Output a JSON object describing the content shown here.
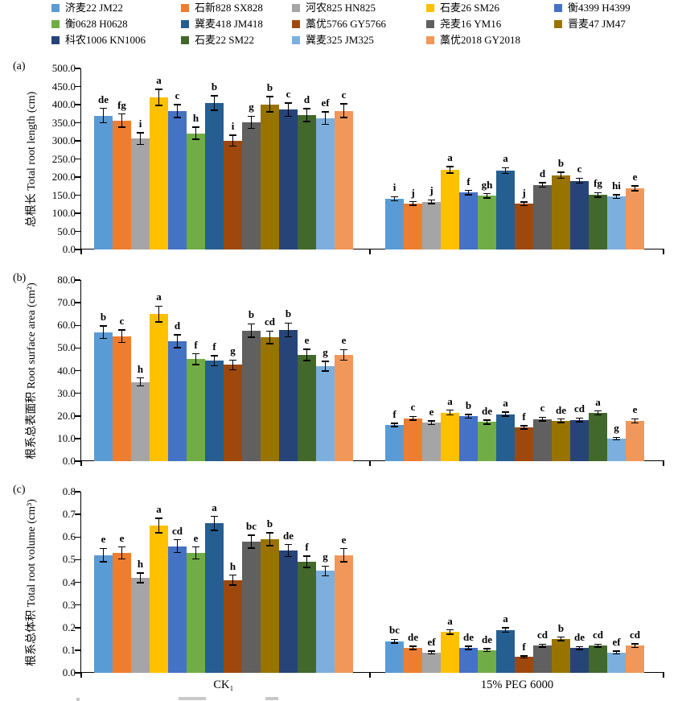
{
  "figure": {
    "x_axis_groups": [
      "CK₁",
      "15% PEG 6000"
    ]
  },
  "legend": {
    "items": [
      {
        "label": "济麦22 JM22",
        "color": "#5B9BD5"
      },
      {
        "label": "石新828 SX828",
        "color": "#ED7D31"
      },
      {
        "label": "河农825 HN825",
        "color": "#A5A5A5"
      },
      {
        "label": "石麦26 SM26",
        "color": "#FFC000"
      },
      {
        "label": "衡4399 H4399",
        "color": "#4472C4"
      },
      {
        "label": "衡0628 H0628",
        "color": "#70AD47"
      },
      {
        "label": "冀麦418 JM418",
        "color": "#255E91"
      },
      {
        "label": "藁优5766 GY5766",
        "color": "#9E480E"
      },
      {
        "label": "尧麦16 YM16",
        "color": "#606060"
      },
      {
        "label": "晋麦47 JM47",
        "color": "#997300"
      },
      {
        "label": "科农1006 KN1006",
        "color": "#264478"
      },
      {
        "label": "石麦22 SM22",
        "color": "#43682B"
      },
      {
        "label": "冀麦325 JM325",
        "color": "#7CAFDD"
      },
      {
        "label": "藁优2018 GY2018",
        "color": "#F1975A"
      }
    ]
  },
  "chart_data": [
    {
      "type": "bar",
      "panel": "(a)",
      "ylabel": "总根长 Total root length (cm)",
      "ylim": [
        0,
        500
      ],
      "yticks": [
        "0.0",
        "50.0",
        "100.0",
        "150.0",
        "200.0",
        "250.0",
        "300.0",
        "350.0",
        "400.0",
        "450.0",
        "500.0"
      ],
      "categories": [
        "济麦22 JM22",
        "石新828 SX828",
        "河农825 HN825",
        "石麦26 SM26",
        "衡4399 H4399",
        "衡0628 H0628",
        "冀麦418 JM418",
        "藁优5766 GY5766",
        "尧麦16 YM16",
        "晋麦47 JM47",
        "科农1006 KN1006",
        "石麦22 SM22",
        "冀麦325 JM325",
        "藁优2018 GY2018"
      ],
      "groups": [
        {
          "label": "CK₁",
          "values": [
            370,
            356,
            306,
            420,
            382,
            321,
            405,
            301,
            351,
            401,
            386,
            371,
            363,
            383
          ],
          "errors": [
            20,
            18,
            16,
            22,
            18,
            17,
            20,
            15,
            17,
            21,
            18,
            18,
            17,
            19
          ],
          "letters": [
            "de",
            "fg",
            "i",
            "a",
            "c",
            "h",
            "b",
            "i",
            "g",
            "b",
            "c",
            "d",
            "ef",
            "c"
          ]
        },
        {
          "label": "15% PEG 6000",
          "values": [
            140,
            127,
            132,
            220,
            157,
            148,
            218,
            126,
            178,
            205,
            190,
            151,
            146,
            169
          ],
          "errors": [
            6,
            5,
            5,
            9,
            6,
            6,
            8,
            5,
            6,
            8,
            7,
            6,
            5,
            7
          ],
          "letters": [
            "i",
            "j",
            "j",
            "a",
            "f",
            "gh",
            "a",
            "j",
            "d",
            "b",
            "c",
            "fg",
            "hi",
            "e"
          ]
        }
      ]
    },
    {
      "type": "bar",
      "panel": "(b)",
      "ylabel": "根系总表面积 Root surface area (cm²)",
      "ylim": [
        0,
        80
      ],
      "yticks": [
        "0.0",
        "10.0",
        "20.0",
        "30.0",
        "40.0",
        "50.0",
        "60.0",
        "70.0",
        "80.0"
      ],
      "categories": [
        "济麦22 JM22",
        "石新828 SX828",
        "河农825 HN825",
        "石麦26 SM26",
        "衡4399 H4399",
        "衡0628 H0628",
        "冀麦418 JM418",
        "藁优5766 GY5766",
        "尧麦16 YM16",
        "晋麦47 JM47",
        "科农1006 KN1006",
        "石麦22 SM22",
        "冀麦325 JM325",
        "藁优2018 GY2018"
      ],
      "groups": [
        {
          "label": "CK₁",
          "values": [
            57.0,
            55.2,
            35.0,
            65.0,
            53.0,
            45.0,
            44.3,
            42.5,
            57.7,
            54.7,
            58.0,
            47.0,
            42.0,
            47.0
          ],
          "errors": [
            2.8,
            2.8,
            1.8,
            3.5,
            2.8,
            2.4,
            2.2,
            2.2,
            3.0,
            2.8,
            3.0,
            2.5,
            2.1,
            2.3
          ],
          "letters": [
            "b",
            "c",
            "h",
            "a",
            "d",
            "f",
            "f",
            "g",
            "b",
            "cd",
            "b",
            "e",
            "g",
            "e"
          ]
        },
        {
          "label": "15% PEG 6000",
          "values": [
            16.0,
            19.0,
            17.0,
            21.5,
            19.8,
            17.3,
            20.8,
            15.0,
            18.6,
            17.8,
            18.3,
            21.3,
            10.0,
            17.8
          ],
          "errors": [
            0.7,
            0.8,
            0.8,
            1.0,
            0.8,
            0.9,
            0.9,
            0.7,
            0.8,
            0.8,
            0.8,
            0.9,
            0.5,
            0.9
          ],
          "letters": [
            "f",
            "c",
            "e",
            "a",
            "b",
            "de",
            "a",
            "f",
            "c",
            "de",
            "cd",
            "a",
            "g",
            "e"
          ]
        }
      ]
    },
    {
      "type": "bar",
      "panel": "(c)",
      "ylabel": "根系总体积 Total root volume (cm³)",
      "ylim": [
        0,
        0.8
      ],
      "yticks": [
        "0.0",
        "0.1",
        "0.2",
        "0.3",
        "0.4",
        "0.5",
        "0.6",
        "0.7",
        "0.8"
      ],
      "categories": [
        "济麦22 JM22",
        "石新828 SX828",
        "河农825 HN825",
        "石麦26 SM26",
        "衡4399 H4399",
        "衡0628 H0628",
        "冀麦418 JM418",
        "藁优5766 GY5766",
        "尧麦16 YM16",
        "晋麦47 JM47",
        "科农1006 KN1006",
        "石麦22 SM22",
        "冀麦325 JM325",
        "藁优2018 GY2018"
      ],
      "groups": [
        {
          "label": "CK₁",
          "values": [
            0.52,
            0.53,
            0.42,
            0.65,
            0.56,
            0.53,
            0.66,
            0.41,
            0.58,
            0.59,
            0.54,
            0.49,
            0.45,
            0.52
          ],
          "errors": [
            0.03,
            0.026,
            0.021,
            0.032,
            0.028,
            0.026,
            0.031,
            0.022,
            0.028,
            0.029,
            0.027,
            0.025,
            0.022,
            0.029
          ],
          "letters": [
            "e",
            "e",
            "h",
            "a",
            "cd",
            "e",
            "a",
            "h",
            "bc",
            "b",
            "de",
            "f",
            "g",
            "e"
          ]
        },
        {
          "label": "15% PEG 6000",
          "values": [
            0.14,
            0.11,
            0.09,
            0.18,
            0.11,
            0.1,
            0.19,
            0.07,
            0.12,
            0.15,
            0.11,
            0.12,
            0.09,
            0.12
          ],
          "errors": [
            0.008,
            0.007,
            0.006,
            0.01,
            0.007,
            0.006,
            0.01,
            0.005,
            0.007,
            0.008,
            0.006,
            0.007,
            0.006,
            0.008
          ],
          "letters": [
            "bc",
            "de",
            "ef",
            "a",
            "de",
            "de",
            "a",
            "f",
            "cd",
            "b",
            "de",
            "cd",
            "ef",
            "cd"
          ]
        }
      ]
    }
  ]
}
